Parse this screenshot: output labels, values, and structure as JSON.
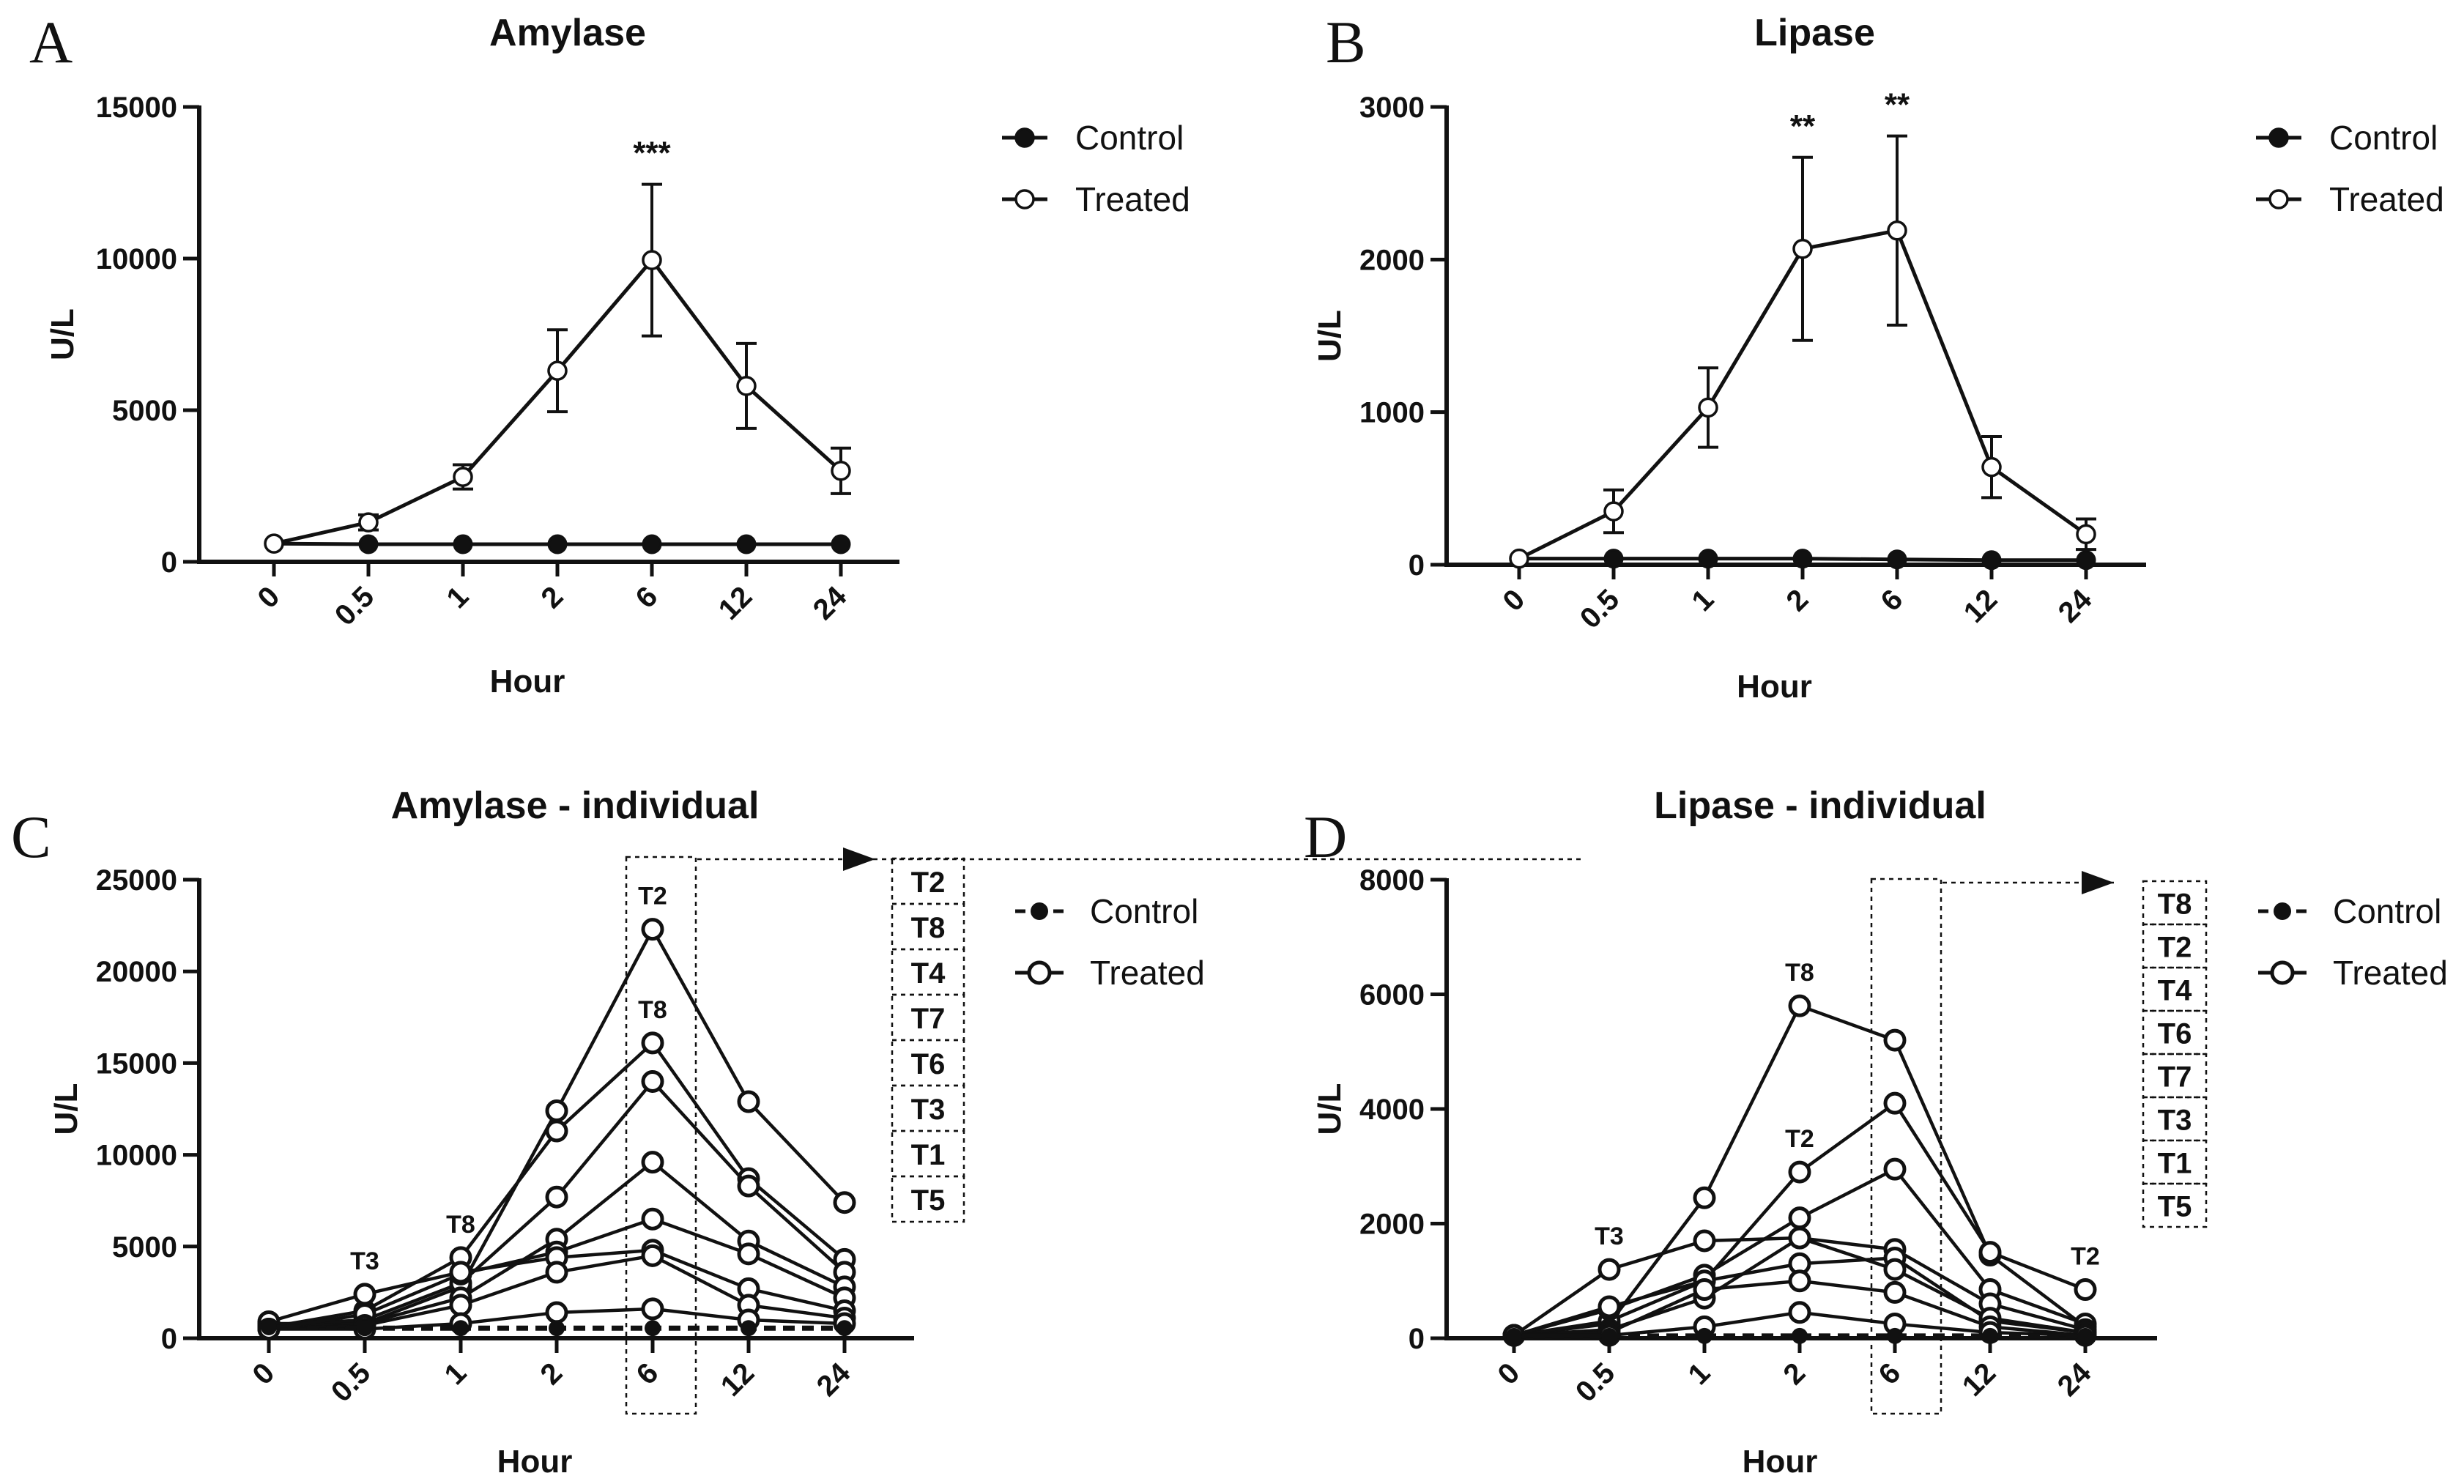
{
  "chart_data": [
    {
      "id": "A",
      "panel_letter": "A",
      "type": "line",
      "title": "Amylase",
      "xlabel": "Hour",
      "ylabel": "U/L",
      "categories": [
        "0",
        "0.5",
        "1",
        "2",
        "6",
        "12",
        "24"
      ],
      "ylim": [
        0,
        15000
      ],
      "yticks": [
        0,
        5000,
        10000,
        15000
      ],
      "series": [
        {
          "name": "Control",
          "marker": "filled",
          "values": [
            600,
            580,
            580,
            580,
            580,
            580,
            580
          ]
        },
        {
          "name": "Treated",
          "marker": "open",
          "values": [
            600,
            1300,
            2800,
            6300,
            9950,
            5800,
            3000
          ],
          "error": [
            0,
            250,
            400,
            1350,
            2500,
            1400,
            750
          ]
        }
      ],
      "annotations": [
        {
          "category": "6",
          "text": "***"
        }
      ],
      "legend_position": "right"
    },
    {
      "id": "B",
      "panel_letter": "B",
      "type": "line",
      "title": "Lipase",
      "xlabel": "Hour",
      "ylabel": "U/L",
      "categories": [
        "0",
        "0.5",
        "1",
        "2",
        "6",
        "12",
        "24"
      ],
      "ylim": [
        0,
        3000
      ],
      "yticks": [
        0,
        1000,
        2000,
        3000
      ],
      "series": [
        {
          "name": "Control",
          "marker": "filled",
          "values": [
            40,
            40,
            40,
            40,
            35,
            30,
            30
          ]
        },
        {
          "name": "Treated",
          "marker": "open",
          "values": [
            40,
            350,
            1030,
            2070,
            2190,
            640,
            200
          ],
          "error": [
            0,
            140,
            260,
            600,
            620,
            200,
            100
          ]
        }
      ],
      "annotations": [
        {
          "category": "2",
          "text": "**"
        },
        {
          "category": "6",
          "text": "**"
        }
      ],
      "legend_position": "right"
    },
    {
      "id": "C",
      "panel_letter": "C",
      "type": "line",
      "title": "Amylase - individual",
      "xlabel": "Hour",
      "ylabel": "U/L",
      "categories": [
        "0",
        "0.5",
        "1",
        "2",
        "6",
        "12",
        "24"
      ],
      "ylim": [
        0,
        25000
      ],
      "yticks": [
        0,
        5000,
        10000,
        15000,
        20000,
        25000
      ],
      "control": {
        "name": "Control",
        "values": [
          600,
          550,
          550,
          550,
          550,
          550,
          550
        ]
      },
      "treated_name": "Treated",
      "series": [
        {
          "name": "T2",
          "values": [
            800,
            800,
            2800,
            12400,
            22300,
            12900,
            7400
          ]
        },
        {
          "name": "T8",
          "values": [
            600,
            1500,
            4400,
            11300,
            16100,
            8700,
            4300
          ]
        },
        {
          "name": "T4",
          "values": [
            700,
            1000,
            3000,
            7700,
            14000,
            8300,
            3600
          ]
        },
        {
          "name": "T7",
          "values": [
            600,
            800,
            2200,
            5400,
            9600,
            5300,
            2800
          ]
        },
        {
          "name": "T6",
          "values": [
            500,
            1300,
            3500,
            4700,
            6500,
            4600,
            2200
          ]
        },
        {
          "name": "T3",
          "values": [
            900,
            2400,
            3600,
            4400,
            4800,
            2700,
            1500
          ]
        },
        {
          "name": "T1",
          "values": [
            500,
            700,
            1800,
            3600,
            4500,
            1800,
            1100
          ]
        },
        {
          "name": "T5",
          "values": [
            500,
            500,
            800,
            1400,
            1600,
            1000,
            800
          ]
        }
      ],
      "point_labels": [
        {
          "series": "T3",
          "category": "0.5",
          "text": "T3"
        },
        {
          "series": "T8",
          "category": "1",
          "text": "T8"
        },
        {
          "series": "T2",
          "category": "6",
          "text": "T2"
        },
        {
          "series": "T8",
          "category": "6",
          "text": "T8"
        }
      ],
      "ranking": [
        "T2",
        "T8",
        "T4",
        "T7",
        "T6",
        "T3",
        "T1",
        "T5"
      ],
      "highlight_category": "6",
      "legend_position": "right"
    },
    {
      "id": "D",
      "panel_letter": "D",
      "type": "line",
      "title": "Lipase - individual",
      "xlabel": "Hour",
      "ylabel": "U/L",
      "categories": [
        "0",
        "0.5",
        "1",
        "2",
        "6",
        "12",
        "24"
      ],
      "ylim": [
        0,
        8000
      ],
      "yticks": [
        0,
        2000,
        4000,
        6000,
        8000
      ],
      "control": {
        "name": "Control",
        "values": [
          40,
          40,
          40,
          40,
          40,
          40,
          40
        ]
      },
      "treated_name": "Treated",
      "series": [
        {
          "name": "T8",
          "values": [
            50,
            250,
            2450,
            5800,
            5200,
            1450,
            200
          ]
        },
        {
          "name": "T2",
          "values": [
            50,
            300,
            1000,
            2900,
            4100,
            1500,
            850
          ]
        },
        {
          "name": "T4",
          "values": [
            50,
            500,
            1100,
            2100,
            2950,
            850,
            250
          ]
        },
        {
          "name": "T6",
          "values": [
            50,
            150,
            700,
            1750,
            1550,
            600,
            150
          ]
        },
        {
          "name": "T7",
          "values": [
            50,
            550,
            1000,
            1300,
            1400,
            300,
            100
          ]
        },
        {
          "name": "T3",
          "values": [
            50,
            1200,
            1700,
            1750,
            1200,
            350,
            100
          ]
        },
        {
          "name": "T1",
          "values": [
            50,
            100,
            850,
            1000,
            800,
            200,
            50
          ]
        },
        {
          "name": "T5",
          "values": [
            50,
            50,
            200,
            450,
            250,
            100,
            50
          ]
        }
      ],
      "point_labels": [
        {
          "series": "T3",
          "category": "0.5",
          "text": "T3"
        },
        {
          "series": "T8",
          "category": "2",
          "text": "T8"
        },
        {
          "series": "T2",
          "category": "2",
          "text": "T2"
        },
        {
          "series": "T2",
          "category": "24",
          "text": "T2"
        }
      ],
      "ranking": [
        "T8",
        "T2",
        "T4",
        "T6",
        "T7",
        "T3",
        "T1",
        "T5"
      ],
      "highlight_category": "6",
      "legend_position": "right"
    }
  ]
}
